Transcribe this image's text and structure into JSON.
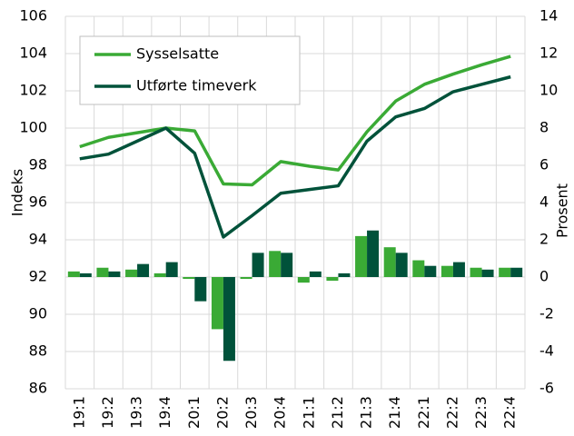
{
  "chart_data": {
    "type": "combo",
    "categories": [
      "19:1",
      "19:2",
      "19:3",
      "19:4",
      "20:1",
      "20:2",
      "20:3",
      "20:4",
      "21:1",
      "21:2",
      "21:3",
      "21:4",
      "22:1",
      "22:2",
      "22:3",
      "22:4"
    ],
    "series": [
      {
        "name": "Sysselsatte",
        "type": "line",
        "axis": "y",
        "color": "#3aaa35",
        "values": [
          99.0,
          99.5,
          99.75,
          100.0,
          99.85,
          97.0,
          96.95,
          98.2,
          97.95,
          97.75,
          99.8,
          101.45,
          102.35,
          102.9,
          103.4,
          103.85
        ]
      },
      {
        "name": "Utførte timeverk",
        "type": "line",
        "axis": "y",
        "color": "#00523a",
        "values": [
          98.35,
          98.6,
          99.3,
          100.0,
          98.65,
          94.15,
          95.3,
          96.5,
          96.7,
          96.9,
          99.3,
          100.6,
          101.05,
          101.95,
          102.35,
          102.75
        ]
      },
      {
        "type": "bar",
        "axis": "y2",
        "color": "#3aaa35",
        "values": [
          0.3,
          0.5,
          0.4,
          0.2,
          -0.1,
          -2.8,
          -0.1,
          1.4,
          -0.3,
          -0.2,
          2.2,
          1.6,
          0.9,
          0.6,
          0.5,
          0.5
        ]
      },
      {
        "type": "bar",
        "axis": "y2",
        "color": "#00523a",
        "values": [
          0.2,
          0.3,
          0.7,
          0.8,
          -1.3,
          -4.5,
          1.3,
          1.3,
          0.3,
          0.2,
          2.5,
          1.3,
          0.6,
          0.8,
          0.4,
          0.5
        ]
      }
    ],
    "ylabel": "Indeks",
    "y2label": "Prosent",
    "ylim": [
      86,
      106
    ],
    "yticks": [
      86,
      88,
      90,
      92,
      94,
      96,
      98,
      100,
      102,
      104,
      106
    ],
    "y2lim": [
      -6,
      14
    ],
    "y2ticks": [
      -6,
      -4,
      -2,
      0,
      2,
      4,
      6,
      8,
      10,
      12,
      14
    ],
    "grid": true,
    "legend": "upper left"
  }
}
